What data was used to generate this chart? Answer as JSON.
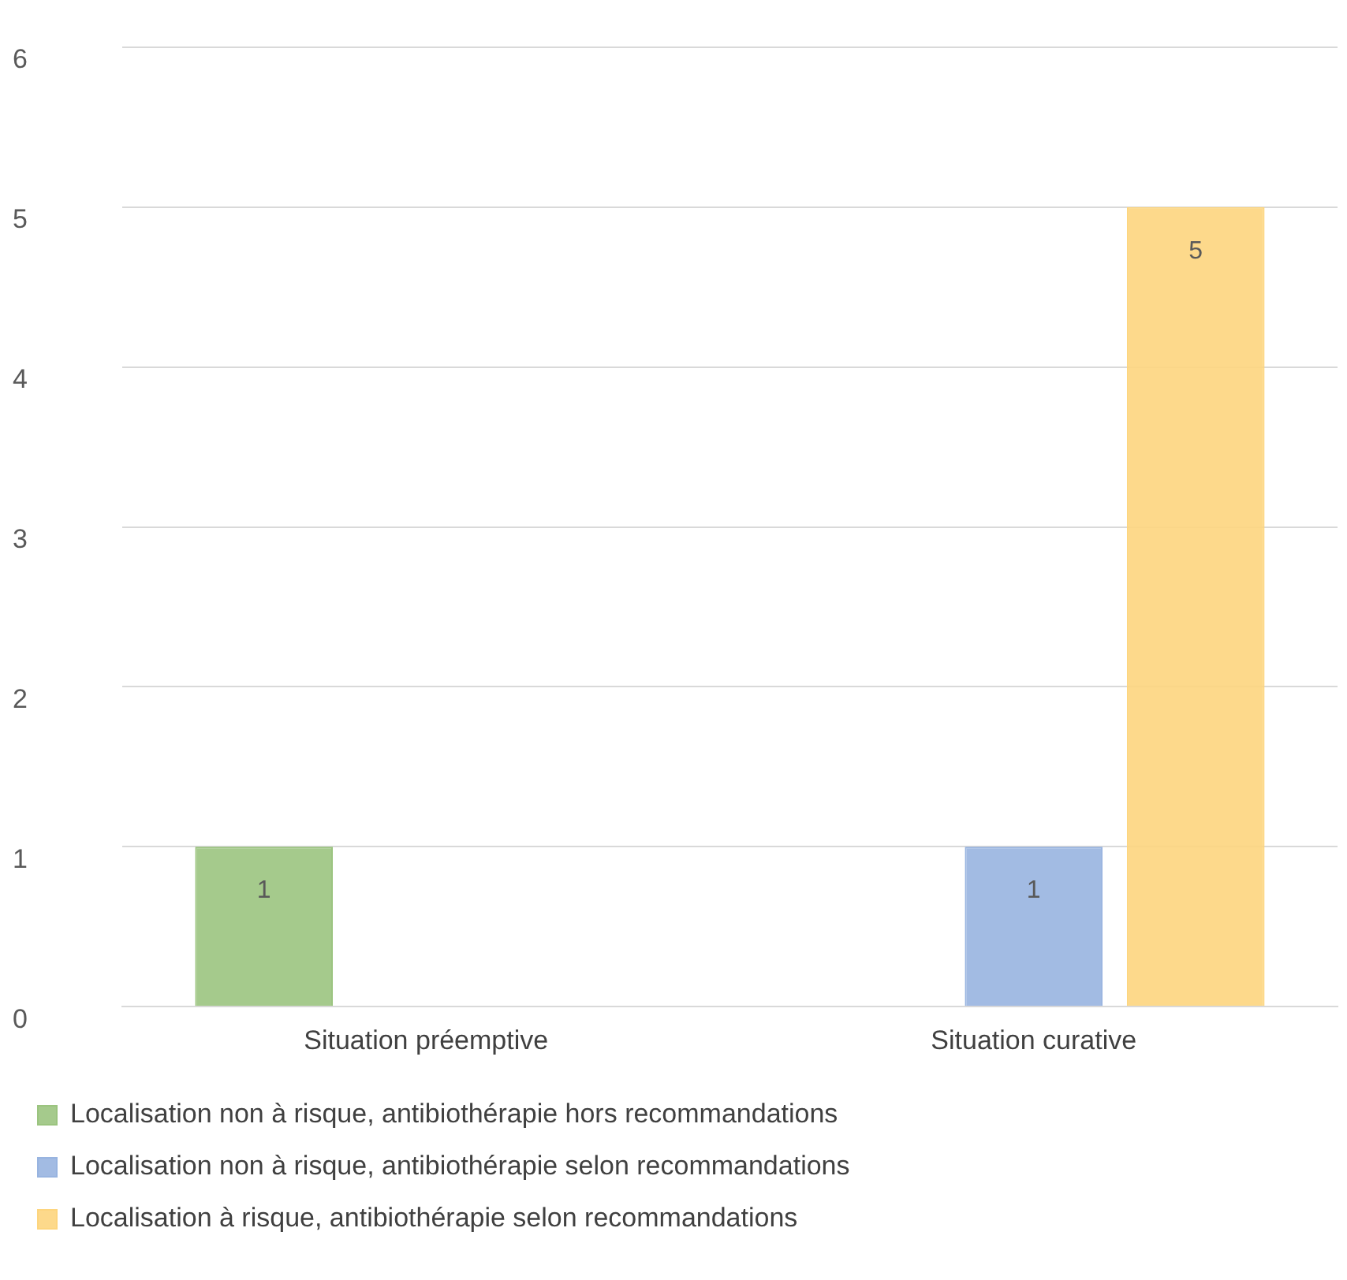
{
  "chart_data": {
    "type": "bar",
    "categories": [
      "Situation préemptive",
      "Situation curative"
    ],
    "series": [
      {
        "name": "Localisation non à risque, antibiothérapie hors recommandations",
        "color": "#9bc47f",
        "values": [
          1,
          null
        ]
      },
      {
        "name": "Localisation non à risque, antibiothérapie selon recommandations",
        "color": "#98b4e0",
        "values": [
          null,
          1
        ]
      },
      {
        "name": "Localisation à risque, antibiothérapie selon recommandations",
        "color": "#fdd57e",
        "values": [
          null,
          5
        ]
      }
    ],
    "ylim": [
      0,
      6
    ],
    "yticks": [
      0,
      1,
      2,
      3,
      4,
      5,
      6
    ],
    "grid": "y",
    "legend": "bottom",
    "data_labels": true
  }
}
